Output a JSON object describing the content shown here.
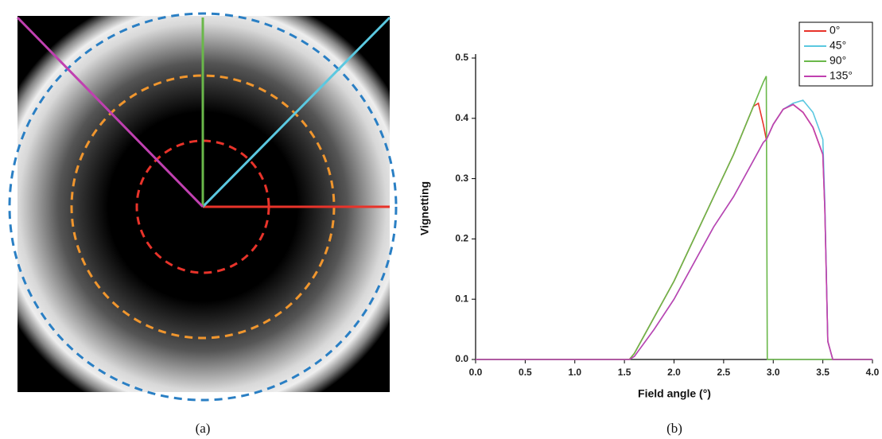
{
  "captions": [
    "(a)",
    "(b)"
  ],
  "chart_data": {
    "type": "line",
    "xlabel": "Field angle (°)",
    "ylabel": "Vignetting",
    "x": [
      0,
      0.5,
      1.0,
      1.5,
      1.55,
      1.6,
      1.8,
      2.0,
      2.2,
      2.4,
      2.6,
      2.8,
      2.85,
      2.9,
      2.93,
      2.94,
      3.0,
      3.1,
      3.2,
      3.3,
      3.4,
      3.5,
      3.52,
      3.55,
      3.6,
      4.0
    ],
    "series": [
      {
        "name": "0°",
        "color": "#e8332a",
        "values": [
          0,
          0,
          0,
          0,
          0,
          0.01,
          0.07,
          0.13,
          0.2,
          0.27,
          0.34,
          0.42,
          0.425,
          0.39,
          0.365,
          0.368,
          0.39,
          0.415,
          0.423,
          0.41,
          0.385,
          0.34,
          0.25,
          0.03,
          0,
          0
        ]
      },
      {
        "name": "45°",
        "color": "#5bc8e0",
        "values": [
          0,
          0,
          0,
          0,
          0,
          0.005,
          0.05,
          0.1,
          0.16,
          0.22,
          0.27,
          0.33,
          0.345,
          0.36,
          0.365,
          0.368,
          0.39,
          0.415,
          0.425,
          0.43,
          0.41,
          0.365,
          0.26,
          0.03,
          0,
          0
        ]
      },
      {
        "name": "90°",
        "color": "#6ab84a",
        "values": [
          0,
          0,
          0,
          0,
          0,
          0.01,
          0.07,
          0.13,
          0.2,
          0.27,
          0.34,
          0.42,
          0.44,
          0.46,
          0.47,
          0,
          0,
          0,
          0,
          0,
          0,
          0,
          0,
          0,
          0,
          0
        ]
      },
      {
        "name": "135°",
        "color": "#c040b0",
        "values": [
          0,
          0,
          0,
          0,
          0,
          0.005,
          0.05,
          0.1,
          0.16,
          0.22,
          0.27,
          0.33,
          0.345,
          0.36,
          0.365,
          0.368,
          0.39,
          0.415,
          0.423,
          0.41,
          0.385,
          0.34,
          0.25,
          0.03,
          0,
          0
        ]
      }
    ],
    "xlim": [
      0,
      4.0
    ],
    "xticks": [
      {
        "value": 0,
        "label": "0.0"
      },
      0.5,
      {
        "value": 1,
        "label": "1.0"
      },
      1.5,
      {
        "value": 2,
        "label": "2.0"
      },
      2.5,
      {
        "value": 3,
        "label": "3.0"
      },
      3.5,
      {
        "value": 4,
        "label": "4.0"
      }
    ],
    "ylim": [
      0,
      0.5
    ],
    "yticks": [
      {
        "value": 0,
        "label": "0.0"
      },
      0.1,
      0.2,
      0.3,
      0.4,
      0.5
    ],
    "legend": "top-right",
    "grid": false
  }
}
